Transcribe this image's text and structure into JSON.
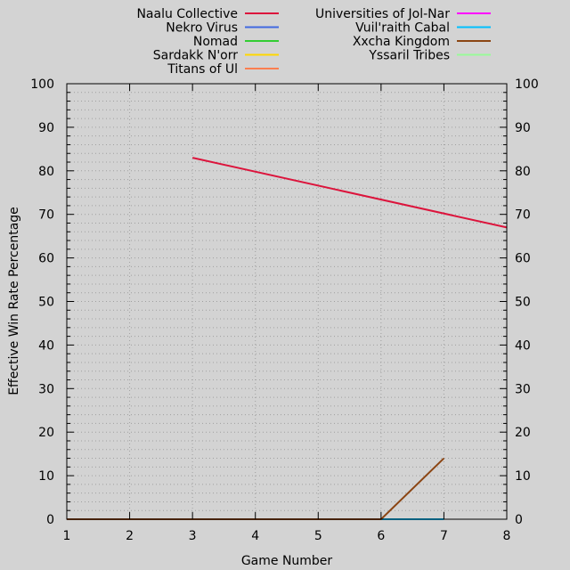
{
  "chart_data": {
    "type": "line",
    "xlabel": "Game Number",
    "ylabel": "Effective Win Rate Percentage",
    "xlim": [
      1,
      8
    ],
    "ylim": [
      0,
      100
    ],
    "x_ticks": [
      1,
      2,
      3,
      4,
      5,
      6,
      7,
      8
    ],
    "y_ticks": [
      0,
      10,
      20,
      30,
      40,
      50,
      60,
      70,
      80,
      90,
      100
    ],
    "grid": true,
    "legend_position": "top",
    "series": [
      {
        "name": "Naalu Collective",
        "color": "#dc143c",
        "x": [
          3,
          8
        ],
        "y": [
          83,
          67
        ]
      },
      {
        "name": "Nekro Virus",
        "color": "#4169e1",
        "x": [],
        "y": []
      },
      {
        "name": "Nomad",
        "color": "#32cd32",
        "x": [],
        "y": []
      },
      {
        "name": "Sardakk N'orr",
        "color": "#ffd700",
        "x": [],
        "y": []
      },
      {
        "name": "Titans of Ul",
        "color": "#ff7f50",
        "x": [],
        "y": []
      },
      {
        "name": "Universities of Jol-Nar",
        "color": "#ff00ff",
        "x": [],
        "y": []
      },
      {
        "name": "Vuil'raith Cabal",
        "color": "#00bfff",
        "x": [
          1,
          7
        ],
        "y": [
          0,
          0
        ]
      },
      {
        "name": "Xxcha Kingdom",
        "color": "#8b4513",
        "x": [
          1,
          2,
          3,
          4,
          5,
          6,
          7
        ],
        "y": [
          0,
          0,
          0,
          0,
          0,
          0,
          14
        ]
      },
      {
        "name": "Yssaril Tribes",
        "color": "#98fb98",
        "x": [],
        "y": []
      }
    ]
  }
}
